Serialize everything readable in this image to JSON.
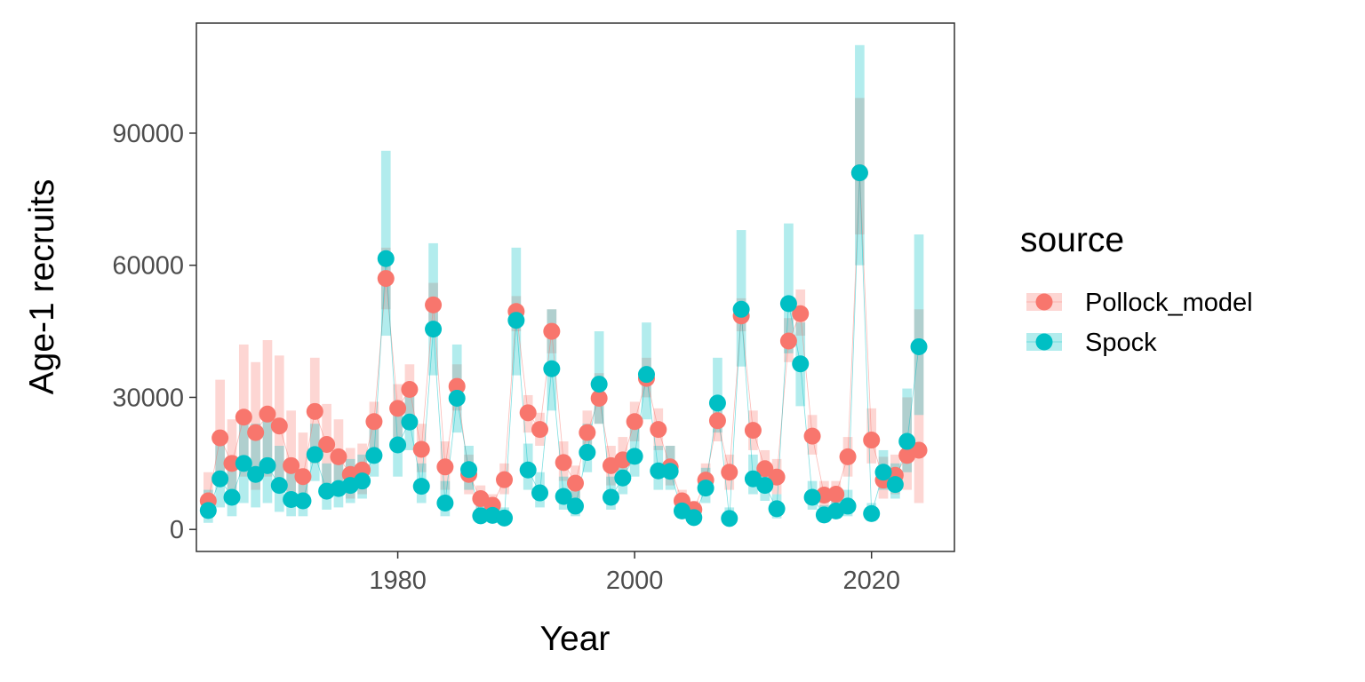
{
  "chart_data": {
    "type": "line",
    "xlabel": "Year",
    "ylabel": "Age-1 recruits",
    "xlim": [
      1963,
      2027
    ],
    "ylim": [
      -5000,
      115000
    ],
    "x_ticks": [
      1980,
      2000,
      2020
    ],
    "y_ticks": [
      0,
      30000,
      60000,
      90000
    ],
    "x_tick_labels": [
      "1980",
      "2000",
      "2020"
    ],
    "y_tick_labels": [
      "0",
      "30000",
      "60000",
      "90000"
    ],
    "grid": false,
    "legend": {
      "title": "source",
      "position": "right"
    },
    "series": [
      {
        "name": "Pollock_model",
        "color": "#F8766D",
        "band_color": "#F8766D",
        "x": [
          1964,
          1965,
          1966,
          1967,
          1968,
          1969,
          1970,
          1971,
          1972,
          1973,
          1974,
          1975,
          1976,
          1977,
          1978,
          1979,
          1980,
          1981,
          1982,
          1983,
          1984,
          1985,
          1986,
          1987,
          1988,
          1989,
          1990,
          1991,
          1992,
          1993,
          1994,
          1995,
          1996,
          1997,
          1998,
          1999,
          2000,
          2001,
          2002,
          2003,
          2004,
          2005,
          2006,
          2007,
          2008,
          2009,
          2010,
          2011,
          2012,
          2013,
          2014,
          2015,
          2016,
          2017,
          2018,
          2019,
          2020,
          2021,
          2022,
          2023,
          2024
        ],
        "y": [
          6500,
          20800,
          15000,
          25500,
          22000,
          26200,
          23500,
          14500,
          12000,
          26800,
          19300,
          16500,
          12500,
          13500,
          24500,
          57000,
          27500,
          31800,
          18200,
          51000,
          14200,
          32500,
          12500,
          7000,
          5500,
          11300,
          49500,
          26500,
          22700,
          45000,
          15200,
          10500,
          22000,
          29800,
          14500,
          15800,
          24500,
          34300,
          22700,
          14200,
          6500,
          4500,
          11200,
          24700,
          13000,
          48500,
          22500,
          13800,
          11900,
          42800,
          49000,
          21200,
          7800,
          8000,
          16500,
          81000,
          20300,
          11200,
          12300,
          16800,
          18000
        ],
        "lower": [
          3000,
          11000,
          8000,
          12000,
          9000,
          12000,
          10000,
          6000,
          5000,
          15000,
          10000,
          9000,
          7000,
          8000,
          18000,
          50000,
          21000,
          26000,
          13000,
          45000,
          9000,
          27000,
          8000,
          4000,
          3000,
          8000,
          45000,
          22000,
          19000,
          40000,
          11000,
          7000,
          17000,
          24000,
          10000,
          11000,
          20000,
          30000,
          18000,
          10000,
          4000,
          3000,
          8000,
          20000,
          9000,
          45000,
          18000,
          10000,
          8000,
          38000,
          44000,
          17000,
          5000,
          5000,
          12000,
          67000,
          15000,
          7000,
          8000,
          9000,
          6000
        ],
        "upper": [
          13000,
          34000,
          25000,
          42000,
          38000,
          43000,
          39500,
          27000,
          22000,
          39000,
          28500,
          25000,
          18500,
          19500,
          29000,
          64000,
          33000,
          37500,
          24000,
          56000,
          20000,
          37500,
          17000,
          10000,
          8000,
          15000,
          53000,
          30500,
          26500,
          50000,
          20000,
          14500,
          27000,
          35500,
          19000,
          21000,
          29000,
          39000,
          27500,
          19000,
          9000,
          6500,
          15000,
          29500,
          17000,
          52500,
          27000,
          18000,
          16000,
          48000,
          54500,
          26000,
          11000,
          11000,
          21000,
          98000,
          27500,
          16500,
          17000,
          30000,
          50000
        ]
      },
      {
        "name": "Spock",
        "color": "#00BFC4",
        "band_color": "#00BFC4",
        "x": [
          1964,
          1965,
          1966,
          1967,
          1968,
          1969,
          1970,
          1971,
          1972,
          1973,
          1974,
          1975,
          1976,
          1977,
          1978,
          1979,
          1980,
          1981,
          1982,
          1983,
          1984,
          1985,
          1986,
          1987,
          1988,
          1989,
          1990,
          1991,
          1992,
          1993,
          1994,
          1995,
          1996,
          1997,
          1998,
          1999,
          2000,
          2001,
          2002,
          2003,
          2004,
          2005,
          2006,
          2007,
          2008,
          2009,
          2010,
          2011,
          2012,
          2013,
          2014,
          2015,
          2016,
          2017,
          2018,
          2019,
          2020,
          2021,
          2022,
          2023,
          2024
        ],
        "y": [
          4300,
          11500,
          7300,
          15000,
          12500,
          14500,
          10000,
          6800,
          6500,
          17000,
          8700,
          9300,
          10000,
          11000,
          16800,
          61500,
          19200,
          24400,
          9800,
          45500,
          6000,
          29800,
          13600,
          3100,
          3200,
          2600,
          47500,
          13500,
          8300,
          36500,
          7500,
          5300,
          17500,
          33000,
          7300,
          11700,
          16600,
          35200,
          13300,
          13200,
          4200,
          2700,
          9400,
          28700,
          2500,
          50000,
          11500,
          10000,
          4700,
          51300,
          37600,
          7300,
          3300,
          4200,
          5300,
          81000,
          3600,
          13000,
          10200,
          20000,
          41500
        ],
        "lower": [
          1500,
          5000,
          3000,
          6000,
          5000,
          6000,
          4000,
          3000,
          3000,
          11000,
          4500,
          5000,
          6000,
          7000,
          12000,
          44000,
          12000,
          18000,
          6000,
          35000,
          3000,
          22000,
          9000,
          1500,
          1500,
          1500,
          35000,
          9000,
          5000,
          27000,
          4500,
          3000,
          13000,
          24000,
          4500,
          8000,
          12000,
          25000,
          9000,
          9000,
          2500,
          1500,
          6000,
          22000,
          1500,
          37000,
          8000,
          6500,
          2500,
          40000,
          28000,
          4500,
          2000,
          2500,
          3000,
          60000,
          2000,
          9000,
          7000,
          13000,
          26000
        ],
        "upper": [
          9000,
          20000,
          14000,
          27000,
          24000,
          27000,
          19000,
          13000,
          12000,
          24000,
          15000,
          16000,
          16000,
          17000,
          23000,
          86000,
          28000,
          33000,
          15000,
          65000,
          11000,
          42000,
          19000,
          5500,
          6000,
          5000,
          64000,
          19500,
          13000,
          50000,
          12000,
          9000,
          24000,
          45000,
          12000,
          17000,
          23000,
          47000,
          19000,
          19000,
          7000,
          5000,
          14000,
          39000,
          5000,
          68000,
          17000,
          15000,
          8000,
          69500,
          47000,
          11000,
          5500,
          7000,
          9000,
          110000,
          6000,
          18000,
          15000,
          32000,
          67000
        ]
      }
    ]
  }
}
